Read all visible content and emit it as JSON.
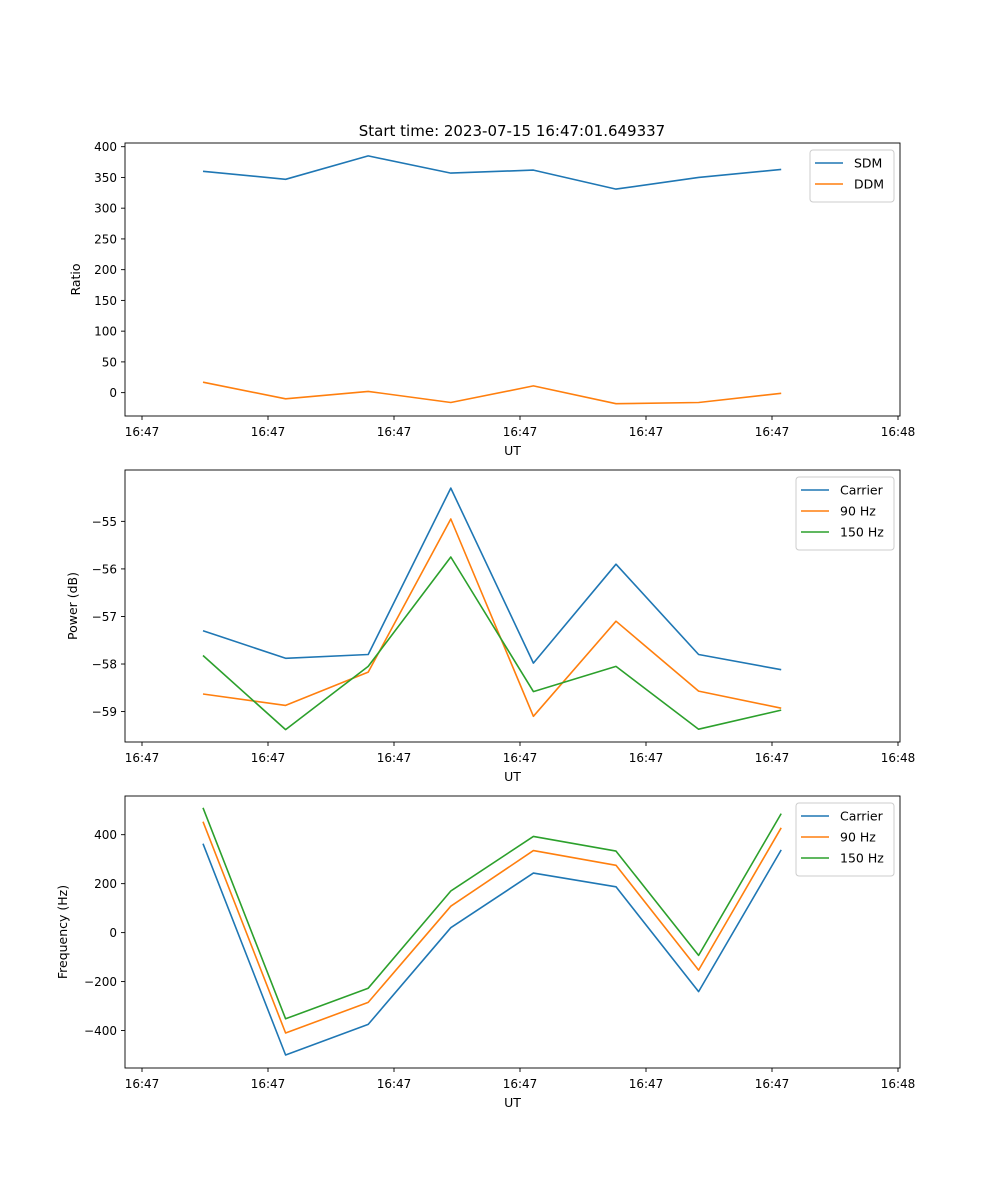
{
  "figure_title": "Start time: 2023-07-15 16:47:01.649337",
  "colors": {
    "blue": "#1f77b4",
    "orange": "#ff7f0e",
    "green": "#2ca02c"
  },
  "chart_data": [
    {
      "type": "line",
      "title": "Start time: 2023-07-15 16:47:01.649337",
      "xlabel": "UT",
      "ylabel": "Ratio",
      "x_tick_labels": [
        "16:47",
        "16:47",
        "16:47",
        "16:47",
        "16:47",
        "16:47",
        "16:48"
      ],
      "ylim": [
        -38,
        406
      ],
      "yticks": [
        0,
        50,
        100,
        150,
        200,
        250,
        300,
        350,
        400
      ],
      "ytick_labels": [
        "0",
        "50",
        "100",
        "150",
        "200",
        "250",
        "300",
        "350",
        "400"
      ],
      "legend_loc": "top-right",
      "series": [
        {
          "name": "SDM",
          "color": "#1f77b4",
          "values": [
            360,
            347,
            385,
            357,
            362,
            331,
            350,
            363
          ]
        },
        {
          "name": "DDM",
          "color": "#ff7f0e",
          "values": [
            17,
            -10,
            2,
            -16,
            11,
            -18,
            -16,
            -1
          ]
        }
      ]
    },
    {
      "type": "line",
      "title": "",
      "xlabel": "UT",
      "ylabel": "Power (dB)",
      "x_tick_labels": [
        "16:47",
        "16:47",
        "16:47",
        "16:47",
        "16:47",
        "16:47",
        "16:48"
      ],
      "ylim": [
        -59.64,
        -53.92
      ],
      "yticks": [
        -59,
        -58,
        -57,
        -56,
        -55
      ],
      "ytick_labels": [
        "−59",
        "−58",
        "−57",
        "−56",
        "−55"
      ],
      "legend_loc": "top-right",
      "series": [
        {
          "name": "Carrier",
          "color": "#1f77b4",
          "values": [
            -57.3,
            -57.88,
            -57.8,
            -54.3,
            -57.98,
            -55.9,
            -57.8,
            -58.12
          ]
        },
        {
          "name": "90 Hz",
          "color": "#ff7f0e",
          "values": [
            -58.63,
            -58.87,
            -58.17,
            -54.95,
            -59.1,
            -57.1,
            -58.57,
            -58.93
          ]
        },
        {
          "name": "150 Hz",
          "color": "#2ca02c",
          "values": [
            -57.82,
            -59.38,
            -58.05,
            -55.75,
            -58.58,
            -58.05,
            -59.37,
            -58.97
          ]
        }
      ]
    },
    {
      "type": "line",
      "title": "",
      "xlabel": "UT",
      "ylabel": "Frequency (Hz)",
      "x_tick_labels": [
        "16:47",
        "16:47",
        "16:47",
        "16:47",
        "16:47",
        "16:47",
        "16:48"
      ],
      "ylim": [
        -553,
        558
      ],
      "yticks": [
        -400,
        -200,
        0,
        200,
        400
      ],
      "ytick_labels": [
        "−400",
        "−200",
        "0",
        "200",
        "400"
      ],
      "legend_loc": "top-right",
      "series": [
        {
          "name": "Carrier",
          "color": "#1f77b4",
          "values": [
            363,
            -500,
            -375,
            20,
            243,
            187,
            -241,
            338
          ]
        },
        {
          "name": "90 Hz",
          "color": "#ff7f0e",
          "values": [
            453,
            -410,
            -285,
            108,
            335,
            275,
            -153,
            428
          ]
        },
        {
          "name": "150 Hz",
          "color": "#2ca02c",
          "values": [
            510,
            -352,
            -227,
            170,
            393,
            333,
            -93,
            486
          ]
        }
      ]
    }
  ]
}
